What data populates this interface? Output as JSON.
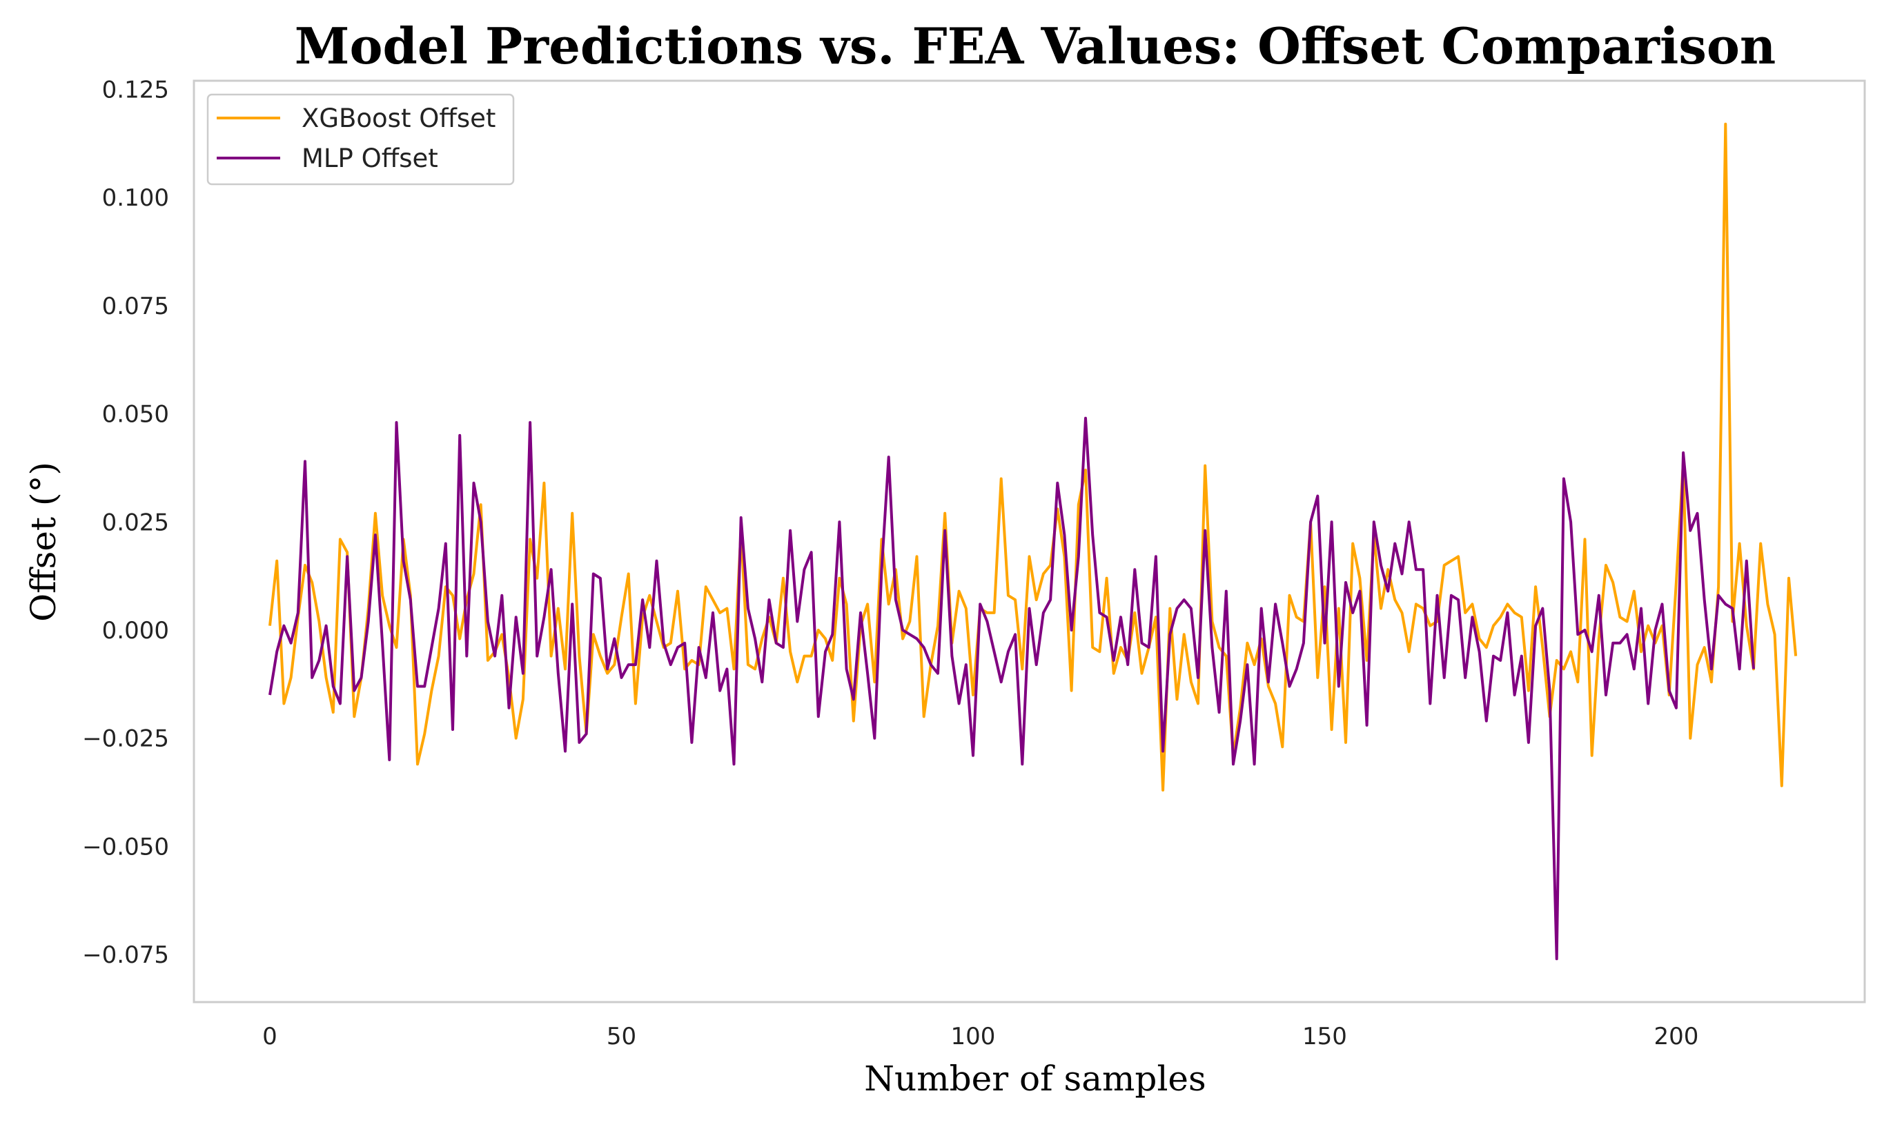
{
  "chart_data": {
    "type": "line",
    "title": "Model Predictions vs. FEA Values: Offset Comparison",
    "xlabel": "Number of samples",
    "ylabel": "Offset (°)",
    "xlim": [
      -10.8,
      226.8
    ],
    "ylim": [
      -0.086,
      0.127
    ],
    "xticks": [
      0,
      50,
      100,
      150,
      200
    ],
    "xtick_labels": [
      "0",
      "50",
      "100",
      "150",
      "200"
    ],
    "yticks": [
      -0.075,
      -0.05,
      -0.025,
      0.0,
      0.025,
      0.05,
      0.075,
      0.1,
      0.125
    ],
    "ytick_labels": [
      "−0.075",
      "−0.050",
      "−0.025",
      "0.000",
      "0.025",
      "0.050",
      "0.075",
      "0.100",
      "0.125"
    ],
    "grid": false,
    "legend_position": "top-left",
    "series": [
      {
        "name": "XGBoost Offset",
        "color": "#FFA500",
        "values": [
          0.001,
          0.016,
          -0.017,
          -0.011,
          0.003,
          0.015,
          0.011,
          0.002,
          -0.011,
          -0.019,
          0.021,
          0.018,
          -0.02,
          -0.011,
          0.005,
          0.027,
          0.008,
          0.001,
          -0.004,
          0.021,
          0.008,
          -0.031,
          -0.024,
          -0.014,
          -0.006,
          0.01,
          0.008,
          -0.002,
          0.007,
          0.013,
          0.029,
          -0.007,
          -0.005,
          -0.001,
          -0.011,
          -0.025,
          -0.016,
          0.021,
          0.012,
          0.034,
          -0.006,
          0.005,
          -0.009,
          0.027,
          -0.006,
          -0.024,
          -0.001,
          -0.006,
          -0.01,
          -0.008,
          0.003,
          0.013,
          -0.017,
          0.003,
          0.008,
          0.002,
          -0.004,
          -0.003,
          0.009,
          -0.009,
          -0.007,
          -0.008,
          0.01,
          0.007,
          0.004,
          0.005,
          -0.009,
          0.023,
          -0.008,
          -0.009,
          -0.002,
          0.003,
          -0.003,
          0.012,
          -0.005,
          -0.012,
          -0.006,
          -0.006,
          0.0,
          -0.002,
          -0.007,
          0.012,
          0.006,
          -0.021,
          0.001,
          0.006,
          -0.012,
          0.021,
          0.006,
          0.014,
          -0.002,
          0.002,
          0.017,
          -0.02,
          -0.008,
          0.001,
          0.027,
          -0.003,
          0.009,
          0.005,
          -0.015,
          0.005,
          0.004,
          0.004,
          0.035,
          0.008,
          0.007,
          -0.009,
          0.017,
          0.007,
          0.013,
          0.015,
          0.028,
          0.017,
          -0.014,
          0.029,
          0.037,
          -0.004,
          -0.005,
          0.012,
          -0.01,
          -0.004,
          -0.007,
          0.004,
          -0.01,
          -0.004,
          0.003,
          -0.037,
          0.005,
          -0.016,
          -0.001,
          -0.012,
          -0.017,
          0.038,
          0.002,
          -0.004,
          -0.006,
          -0.029,
          -0.018,
          -0.003,
          -0.008,
          -0.002,
          -0.013,
          -0.017,
          -0.027,
          0.008,
          0.003,
          0.002,
          0.025,
          -0.011,
          0.01,
          -0.023,
          0.005,
          -0.026,
          0.02,
          0.012,
          -0.007,
          0.022,
          0.005,
          0.014,
          0.007,
          0.004,
          -0.005,
          0.006,
          0.005,
          0.001,
          0.002,
          0.015,
          0.016,
          0.017,
          0.004,
          0.006,
          -0.002,
          -0.004,
          0.001,
          0.003,
          0.006,
          0.004,
          0.003,
          -0.014,
          0.01,
          -0.004,
          -0.02,
          -0.007,
          -0.009,
          -0.005,
          -0.012,
          0.021,
          -0.029,
          -0.002,
          0.015,
          0.011,
          0.003,
          0.002,
          0.009,
          -0.005,
          0.001,
          -0.003,
          0.001,
          -0.015,
          0.011,
          0.039,
          -0.025,
          -0.008,
          -0.004,
          -0.012,
          0.01,
          0.117,
          0.002,
          0.02,
          0.001,
          -0.009,
          0.02,
          0.006,
          -0.001,
          -0.036,
          0.012,
          -0.006
        ]
      },
      {
        "name": "MLP Offset",
        "color": "#800080",
        "values": [
          -0.015,
          -0.005,
          0.001,
          -0.003,
          0.004,
          0.039,
          -0.011,
          -0.007,
          0.001,
          -0.013,
          -0.017,
          0.017,
          -0.014,
          -0.011,
          0.002,
          0.022,
          -0.003,
          -0.03,
          0.048,
          0.016,
          0.007,
          -0.013,
          -0.013,
          -0.004,
          0.005,
          0.02,
          -0.023,
          0.045,
          -0.006,
          0.034,
          0.025,
          0.002,
          -0.006,
          0.008,
          -0.018,
          0.003,
          -0.01,
          0.048,
          -0.006,
          0.003,
          0.014,
          -0.01,
          -0.028,
          0.006,
          -0.026,
          -0.024,
          0.013,
          0.012,
          -0.009,
          -0.002,
          -0.011,
          -0.008,
          -0.008,
          0.007,
          -0.004,
          0.016,
          -0.003,
          -0.008,
          -0.004,
          -0.003,
          -0.026,
          -0.004,
          -0.011,
          0.004,
          -0.014,
          -0.009,
          -0.031,
          0.026,
          0.005,
          -0.002,
          -0.012,
          0.007,
          -0.003,
          -0.004,
          0.023,
          0.002,
          0.014,
          0.018,
          -0.02,
          -0.005,
          -0.001,
          0.025,
          -0.009,
          -0.016,
          0.004,
          -0.01,
          -0.025,
          0.014,
          0.04,
          0.007,
          0.0,
          -0.001,
          -0.002,
          -0.004,
          -0.008,
          -0.01,
          0.023,
          -0.006,
          -0.017,
          -0.008,
          -0.029,
          0.006,
          0.002,
          -0.005,
          -0.012,
          -0.005,
          -0.001,
          -0.031,
          0.005,
          -0.008,
          0.004,
          0.007,
          0.034,
          0.022,
          0.0,
          0.017,
          0.049,
          0.022,
          0.004,
          0.003,
          -0.007,
          0.003,
          -0.008,
          0.014,
          -0.003,
          -0.004,
          0.017,
          -0.028,
          -0.001,
          0.005,
          0.007,
          0.005,
          -0.011,
          0.023,
          -0.004,
          -0.019,
          0.009,
          -0.031,
          -0.021,
          -0.008,
          -0.031,
          0.005,
          -0.012,
          0.006,
          -0.003,
          -0.013,
          -0.009,
          -0.003,
          0.025,
          0.031,
          -0.003,
          0.025,
          -0.013,
          0.011,
          0.004,
          0.009,
          -0.022,
          0.025,
          0.015,
          0.009,
          0.02,
          0.013,
          0.025,
          0.014,
          0.014,
          -0.017,
          0.008,
          -0.011,
          0.008,
          0.007,
          -0.011,
          0.003,
          -0.005,
          -0.021,
          -0.006,
          -0.007,
          0.004,
          -0.015,
          -0.006,
          -0.026,
          0.001,
          0.005,
          -0.014,
          -0.076,
          0.035,
          0.025,
          -0.001,
          0.0,
          -0.005,
          0.008,
          -0.015,
          -0.003,
          -0.003,
          -0.001,
          -0.009,
          0.005,
          -0.017,
          0.0,
          0.006,
          -0.014,
          -0.018,
          0.041,
          0.023,
          0.027,
          0.007,
          -0.009,
          0.008,
          0.006,
          0.005,
          -0.009,
          0.016,
          -0.009
        ]
      }
    ]
  }
}
